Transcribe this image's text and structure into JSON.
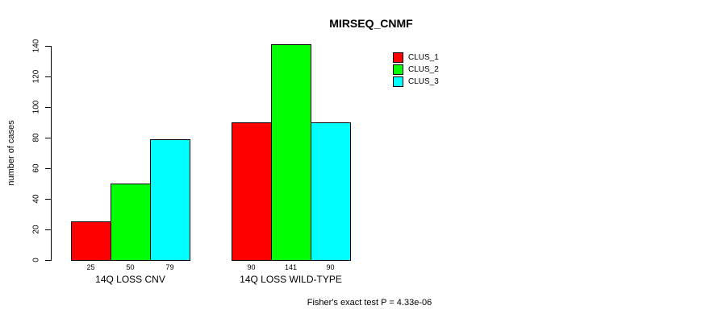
{
  "chart_data": {
    "type": "bar",
    "title": "MIRSEQ_CNMF",
    "ylabel": "number of cases",
    "xlabel": "",
    "categories": [
      "14Q LOSS CNV",
      "14Q LOSS WILD-TYPE"
    ],
    "series": [
      {
        "name": "CLUS_1",
        "color": "#ff0000",
        "values": [
          25,
          90
        ]
      },
      {
        "name": "CLUS_2",
        "color": "#00ff00",
        "values": [
          50,
          141
        ]
      },
      {
        "name": "CLUS_3",
        "color": "#00ffff",
        "values": [
          79,
          90
        ]
      }
    ],
    "yticks": [
      0,
      20,
      40,
      60,
      80,
      100,
      120,
      140
    ],
    "ylim": [
      0,
      140
    ],
    "grid": false,
    "bar_value_labels_shown": true,
    "legend_position": "top-right",
    "legend_entries": [
      "CLUS_1",
      "CLUS_2",
      "CLUS_3"
    ],
    "annotation": "Fisher's exact test P = 4.33e-06"
  }
}
